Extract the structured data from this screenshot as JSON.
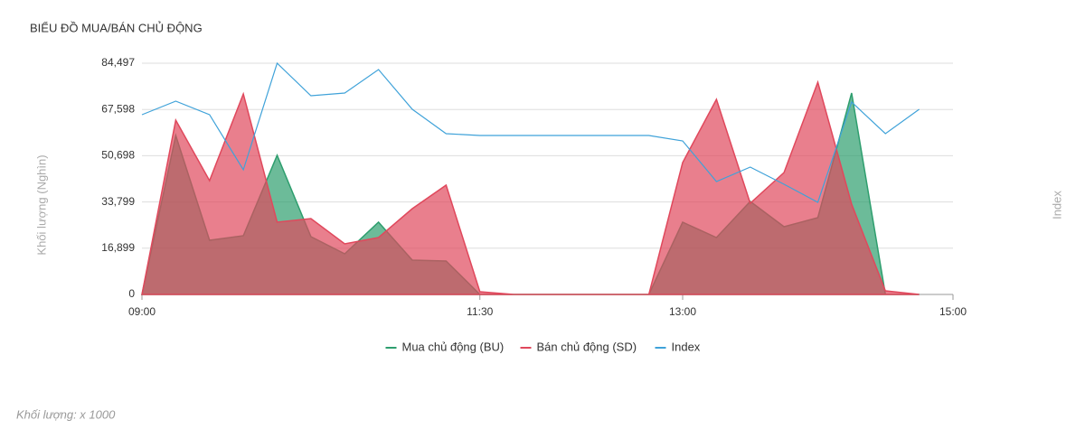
{
  "chart_data": {
    "type": "area",
    "title": "BIỂU ĐỒ MUA/BÁN CHỦ ĐỘNG",
    "y_label": "Khối lượng (Nghìn)",
    "y2_label": "Index",
    "footnote": "Khối lượng: x 1000",
    "x": [
      "09:00",
      "09:15",
      "09:30",
      "09:45",
      "10:00",
      "10:15",
      "10:30",
      "10:45",
      "11:00",
      "11:15",
      "11:30",
      "11:45",
      "12:00",
      "12:15",
      "12:30",
      "12:45",
      "13:00",
      "13:15",
      "13:30",
      "13:45",
      "14:00",
      "14:15",
      "14:30",
      "14:45"
    ],
    "xlim": [
      "09:00",
      "15:00"
    ],
    "xticks": [
      "09:00",
      "11:30",
      "13:00",
      "15:00"
    ],
    "ylim": [
      0,
      84497
    ],
    "yticks": [
      0,
      {
        "value": 16899,
        "label": "16,899"
      },
      {
        "value": 33799,
        "label": "33,799"
      },
      {
        "value": 50698,
        "label": "50,698"
      },
      {
        "value": 67598,
        "label": "67,598"
      },
      {
        "value": 84497,
        "label": "84,497"
      }
    ],
    "grid": true,
    "legend": "bottom",
    "series": [
      {
        "name": "Mua chủ động (BU)",
        "color": "#2e9e6e",
        "kind": "area",
        "values": [
          0,
          58092,
          19804,
          21455,
          50831,
          21124,
          14853,
          26406,
          12543,
          12213,
          0,
          0,
          0,
          0,
          0,
          0,
          26406,
          20794,
          33997,
          24755,
          28056,
          73606,
          0,
          0
        ]
      },
      {
        "name": "Bán chủ động (SD)",
        "color": "#e0485c",
        "kind": "area",
        "values": [
          0,
          63704,
          41589,
          73276,
          26406,
          27726,
          18484,
          20794,
          31357,
          39938,
          990,
          0,
          0,
          0,
          0,
          0,
          48190,
          71295,
          33337,
          44559,
          77566,
          33007,
          1320,
          0
        ]
      },
      {
        "name": "Index",
        "color": "#3fa2d9",
        "kind": "line",
        "values": [
          65684,
          70635,
          65684,
          45550,
          84497,
          72615,
          73606,
          82187,
          67664,
          58752,
          58092,
          58092,
          58092,
          58092,
          58092,
          58092,
          56112,
          41259,
          46540,
          40268,
          33667,
          70305,
          58752,
          67664
        ]
      }
    ]
  }
}
